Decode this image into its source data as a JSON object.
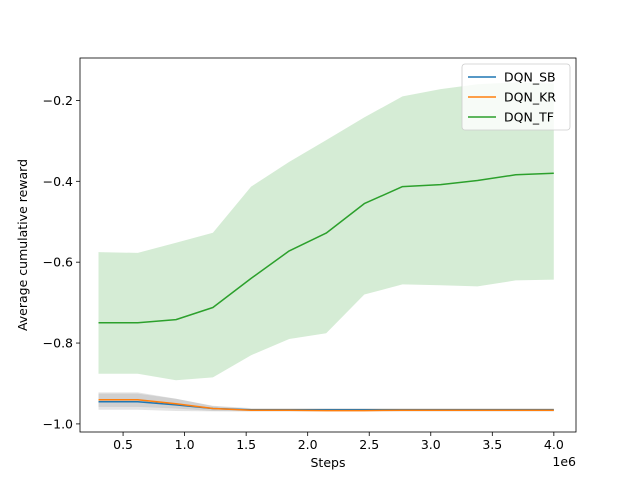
{
  "chart_data": {
    "type": "line",
    "xlabel": "Steps",
    "ylabel": "Average cumulative reward",
    "x_offset_label": "1e6",
    "x_scale": 1000000,
    "xlim": [
      0.15,
      4.18
    ],
    "ylim": [
      -1.02,
      -0.095
    ],
    "xticks": [
      0.5,
      1.0,
      1.5,
      2.0,
      2.5,
      3.0,
      3.5,
      4.0
    ],
    "xtick_labels": [
      "0.5",
      "1.0",
      "1.5",
      "2.0",
      "2.5",
      "3.0",
      "3.5",
      "4.0"
    ],
    "yticks": [
      -1.0,
      -0.8,
      -0.6,
      -0.4,
      -0.2
    ],
    "ytick_labels": [
      "−1.0",
      "−0.8",
      "−0.6",
      "−0.4",
      "−0.2"
    ],
    "legend_position": "top-right",
    "grid": false,
    "x": [
      0.3,
      0.62,
      0.93,
      1.23,
      1.54,
      1.85,
      2.15,
      2.46,
      2.77,
      3.08,
      3.38,
      3.69,
      4.0
    ],
    "series": [
      {
        "name": "DQN_SB",
        "color": "#1f77b4",
        "values": [
          -0.945,
          -0.945,
          -0.953,
          -0.962,
          -0.965,
          -0.965,
          -0.965,
          -0.965,
          -0.965,
          -0.965,
          -0.965,
          -0.965,
          -0.965
        ],
        "lower": [
          -0.965,
          -0.965,
          -0.968,
          -0.969,
          -0.969,
          -0.969,
          -0.969,
          -0.969,
          -0.969,
          -0.969,
          -0.969,
          -0.969,
          -0.969
        ],
        "upper": [
          -0.925,
          -0.925,
          -0.938,
          -0.955,
          -0.961,
          -0.961,
          -0.961,
          -0.961,
          -0.961,
          -0.961,
          -0.961,
          -0.961,
          -0.961
        ]
      },
      {
        "name": "DQN_KR",
        "color": "#ff7f0e",
        "values": [
          -0.94,
          -0.94,
          -0.95,
          -0.962,
          -0.966,
          -0.966,
          -0.967,
          -0.967,
          -0.966,
          -0.966,
          -0.966,
          -0.966,
          -0.966
        ],
        "lower": [
          -0.958,
          -0.958,
          -0.962,
          -0.968,
          -0.969,
          -0.969,
          -0.969,
          -0.969,
          -0.969,
          -0.969,
          -0.969,
          -0.969,
          -0.969
        ],
        "upper": [
          -0.922,
          -0.922,
          -0.938,
          -0.956,
          -0.963,
          -0.963,
          -0.965,
          -0.965,
          -0.963,
          -0.963,
          -0.963,
          -0.963,
          -0.963
        ]
      },
      {
        "name": "DQN_TF",
        "color": "#2ca02c",
        "values": [
          -0.75,
          -0.75,
          -0.742,
          -0.712,
          -0.64,
          -0.572,
          -0.528,
          -0.455,
          -0.413,
          -0.408,
          -0.398,
          -0.384,
          -0.38
        ],
        "lower": [
          -0.876,
          -0.876,
          -0.892,
          -0.885,
          -0.83,
          -0.79,
          -0.776,
          -0.68,
          -0.655,
          -0.657,
          -0.66,
          -0.645,
          -0.643
        ],
        "upper": [
          -0.575,
          -0.577,
          -0.552,
          -0.527,
          -0.413,
          -0.352,
          -0.298,
          -0.242,
          -0.19,
          -0.172,
          -0.16,
          -0.155,
          -0.158
        ]
      }
    ]
  }
}
